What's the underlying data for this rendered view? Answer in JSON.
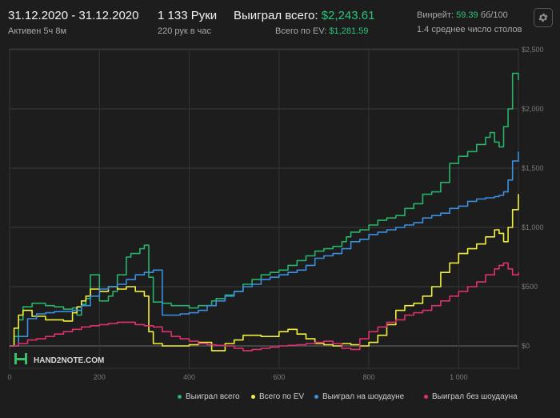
{
  "header": {
    "date_range": "31.12.2020 - 31.12.2020",
    "active": "Активен 5ч 8м",
    "hands": "1 133 Руки",
    "hands_per_hour": "220 рук в час",
    "won_total_label": "Выиграл всего:",
    "won_total_value": "$2,243.61",
    "ev_total_label": "Всего по EV:",
    "ev_total_value": "$1,281.59",
    "winrate_label": "Винрейт:",
    "winrate_value": "59.39",
    "winrate_unit": "бб/100",
    "avg_tables": "1.4 среднее число столов"
  },
  "brand": {
    "logo_text": "HAND2NOTE.COM"
  },
  "colors": {
    "green": "#27b36a",
    "yellow": "#f0f03c",
    "blue": "#3a8fe0",
    "pink": "#e0306e"
  },
  "icons": {
    "settings": "gear-icon",
    "logo": "hand2note-logo-icon"
  },
  "chart_data": {
    "type": "line",
    "xlabel": "",
    "ylabel": "",
    "xlim": [
      0,
      1133
    ],
    "ylim": [
      -50,
      2500
    ],
    "x_ticks": [
      0,
      200,
      400,
      600,
      800,
      1000
    ],
    "x_tick_labels": [
      "0",
      "200",
      "400",
      "600",
      "800",
      "1 000"
    ],
    "y_ticks": [
      0,
      500,
      1000,
      1500,
      2000,
      2500
    ],
    "y_tick_labels": [
      "$0",
      "$500",
      "$1,000",
      "$1,500",
      "$2,000",
      "$2,500"
    ],
    "grid": true,
    "legend_position": "bottom-right",
    "series": [
      {
        "name": "Выиграл всего",
        "color": "#27b36a",
        "x": [
          0,
          10,
          20,
          30,
          50,
          80,
          100,
          120,
          140,
          150,
          160,
          170,
          180,
          200,
          220,
          230,
          240,
          260,
          270,
          290,
          300,
          310,
          320,
          340,
          360,
          400,
          420,
          450,
          460,
          480,
          500,
          520,
          540,
          560,
          580,
          600,
          620,
          640,
          660,
          680,
          700,
          720,
          740,
          750,
          760,
          780,
          800,
          820,
          840,
          860,
          880,
          900,
          920,
          940,
          960,
          980,
          1000,
          1020,
          1040,
          1060,
          1070,
          1080,
          1090,
          1100,
          1110,
          1120,
          1133
        ],
        "y": [
          0,
          80,
          220,
          330,
          360,
          340,
          330,
          310,
          320,
          260,
          350,
          400,
          600,
          380,
          420,
          460,
          600,
          750,
          780,
          820,
          850,
          580,
          370,
          360,
          340,
          320,
          340,
          380,
          400,
          430,
          460,
          520,
          560,
          600,
          620,
          640,
          680,
          720,
          760,
          800,
          820,
          840,
          880,
          920,
          960,
          980,
          1020,
          1060,
          1080,
          1100,
          1160,
          1200,
          1280,
          1300,
          1380,
          1540,
          1600,
          1640,
          1700,
          1760,
          1800,
          1720,
          1680,
          1850,
          2000,
          2300,
          2243
        ]
      },
      {
        "name": "Всего по EV",
        "color": "#f0f03c",
        "x": [
          0,
          10,
          20,
          30,
          50,
          80,
          100,
          120,
          140,
          150,
          160,
          170,
          180,
          200,
          220,
          240,
          260,
          280,
          300,
          310,
          320,
          340,
          360,
          400,
          420,
          450,
          480,
          500,
          520,
          560,
          600,
          620,
          640,
          660,
          680,
          700,
          720,
          740,
          760,
          780,
          800,
          820,
          840,
          860,
          880,
          900,
          920,
          940,
          960,
          980,
          1000,
          1020,
          1040,
          1060,
          1080,
          1090,
          1100,
          1110,
          1120,
          1133
        ],
        "y": [
          0,
          150,
          260,
          300,
          250,
          220,
          220,
          210,
          280,
          330,
          380,
          420,
          480,
          460,
          500,
          480,
          500,
          460,
          420,
          120,
          20,
          0,
          0,
          10,
          30,
          -40,
          20,
          50,
          90,
          80,
          120,
          140,
          100,
          60,
          20,
          10,
          0,
          20,
          10,
          0,
          30,
          90,
          180,
          300,
          340,
          360,
          420,
          500,
          620,
          700,
          780,
          820,
          860,
          920,
          980,
          950,
          880,
          1000,
          1150,
          1281
        ]
      },
      {
        "name": "Выиграл на шоудауне",
        "color": "#3a8fe0",
        "x": [
          0,
          20,
          40,
          60,
          80,
          100,
          120,
          140,
          160,
          180,
          200,
          220,
          240,
          260,
          280,
          300,
          320,
          340,
          360,
          380,
          400,
          420,
          440,
          460,
          480,
          500,
          520,
          540,
          560,
          580,
          600,
          620,
          640,
          660,
          680,
          700,
          720,
          740,
          760,
          780,
          800,
          820,
          840,
          860,
          880,
          900,
          920,
          940,
          960,
          980,
          1000,
          1020,
          1040,
          1060,
          1080,
          1090,
          1100,
          1110,
          1120,
          1133
        ],
        "y": [
          0,
          80,
          230,
          270,
          280,
          290,
          290,
          300,
          340,
          420,
          480,
          500,
          520,
          560,
          600,
          620,
          640,
          260,
          260,
          270,
          280,
          300,
          340,
          380,
          420,
          460,
          500,
          520,
          560,
          580,
          600,
          620,
          640,
          680,
          740,
          760,
          780,
          820,
          880,
          900,
          940,
          960,
          980,
          1000,
          1020,
          1040,
          1080,
          1100,
          1120,
          1160,
          1180,
          1220,
          1240,
          1250,
          1260,
          1270,
          1300,
          1400,
          1560,
          1640
        ]
      },
      {
        "name": "Выиграл без шоудауна",
        "color": "#e0306e",
        "x": [
          0,
          20,
          40,
          60,
          80,
          100,
          120,
          140,
          160,
          180,
          200,
          220,
          240,
          260,
          280,
          300,
          320,
          340,
          360,
          380,
          400,
          420,
          440,
          460,
          480,
          500,
          520,
          540,
          560,
          580,
          600,
          620,
          640,
          660,
          680,
          700,
          720,
          740,
          760,
          780,
          800,
          820,
          840,
          860,
          880,
          900,
          920,
          940,
          960,
          980,
          1000,
          1020,
          1040,
          1060,
          1080,
          1090,
          1100,
          1110,
          1120,
          1133
        ],
        "y": [
          0,
          20,
          50,
          60,
          80,
          100,
          120,
          140,
          160,
          170,
          180,
          190,
          200,
          200,
          180,
          170,
          160,
          120,
          80,
          60,
          40,
          20,
          10,
          5,
          0,
          -20,
          -40,
          -30,
          -20,
          -10,
          0,
          5,
          10,
          20,
          30,
          40,
          20,
          -20,
          -30,
          60,
          120,
          160,
          200,
          220,
          260,
          280,
          300,
          340,
          380,
          420,
          460,
          500,
          540,
          600,
          650,
          680,
          700,
          650,
          600,
          620
        ]
      }
    ]
  },
  "legend": [
    {
      "label": "Выиграл всего"
    },
    {
      "label": "Всего по EV"
    },
    {
      "label": "Выиграл на шоудауне"
    },
    {
      "label": "Выиграл без шоудауна"
    }
  ]
}
